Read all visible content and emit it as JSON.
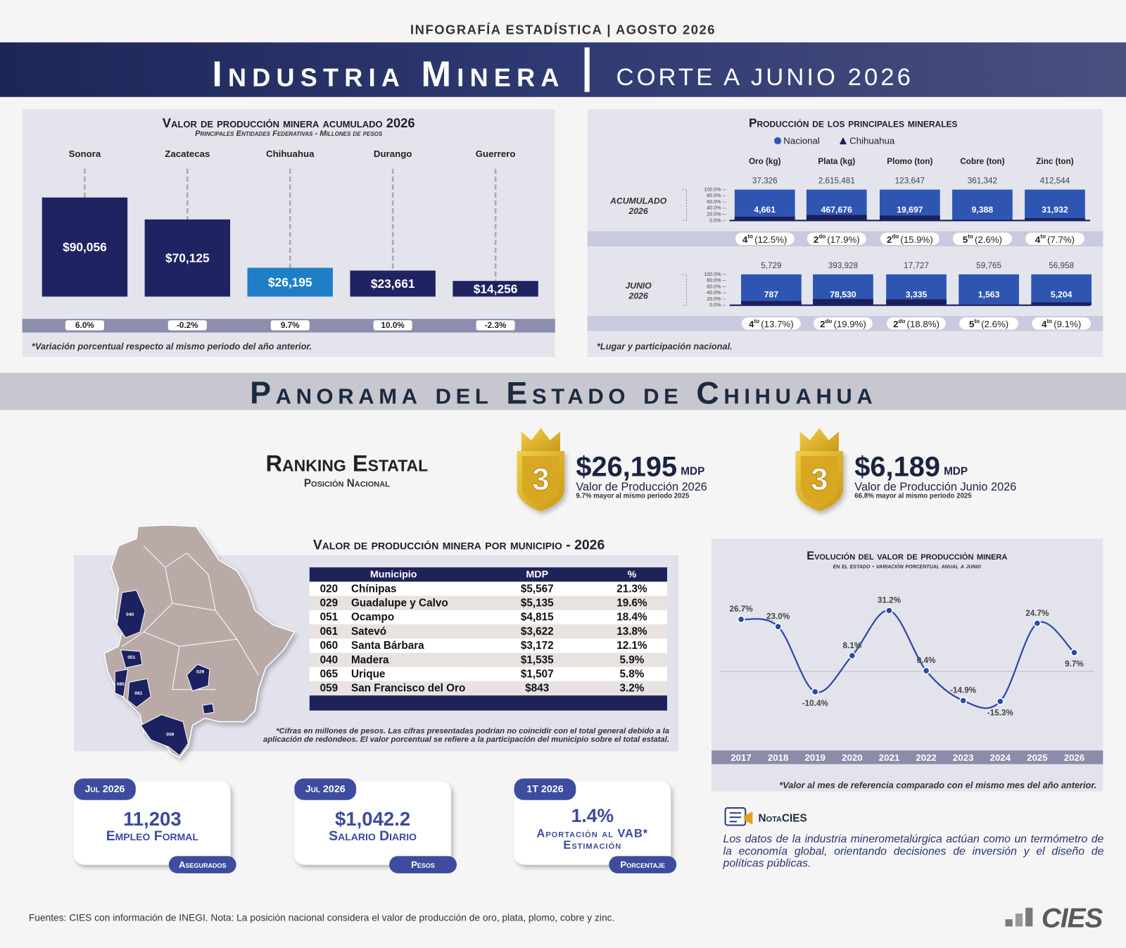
{
  "header": {
    "top_label": "INFOGRAFÍA ESTADÍSTICA | AGOSTO 2026",
    "title": "Industria Minera",
    "subtitle": "CORTE A JUNIO 2026"
  },
  "chart_data": [
    {
      "type": "bar",
      "title": "Valor de producción minera acumulado 2026",
      "subtitle": "Principales Entidades Federativas - Millones de pesos",
      "categories": [
        "Sonora",
        "Zacatecas",
        "Chihuahua",
        "Durango",
        "Guerrero"
      ],
      "values": [
        90056,
        70125,
        26195,
        23661,
        14256
      ],
      "value_labels": [
        "$90,056",
        "$70,125",
        "$26,195",
        "$23,661",
        "$14,256"
      ],
      "colors": [
        "#1f2361",
        "#1f2361",
        "#1f7fc6",
        "#1f2361",
        "#1f2361"
      ],
      "variation_labels": [
        "6.0%",
        "-0.2%",
        "9.7%",
        "10.0%",
        "-2.3%"
      ],
      "footnote": "*Variación porcentual respecto al mismo periodo del año anterior."
    },
    {
      "type": "share",
      "title": "Producción de los principales minerales",
      "categories": [
        "Oro (kg)",
        "Plata (kg)",
        "Plomo (ton)",
        "Cobre (ton)",
        "Zinc (ton)"
      ],
      "series": [
        {
          "name": "Nacional",
          "color": "#2f55b2"
        },
        {
          "name": "Chihuahua",
          "color": "#1b1f5c"
        }
      ],
      "ylim": [
        0,
        100
      ],
      "yticks": [
        {
          "value": 100,
          "label": "100.0%"
        },
        {
          "value": 80,
          "label": "80.0%"
        },
        {
          "value": 60,
          "label": "60.0%"
        },
        {
          "value": 40,
          "label": "40.0%"
        },
        {
          "value": 20,
          "label": "20.0%"
        },
        {
          "value": 0,
          "label": "0.0%"
        }
      ],
      "rows": [
        {
          "label": "ACUMULADO",
          "year": "2026",
          "nacional": [
            37326,
            2615481,
            123647,
            361342,
            412544
          ],
          "nacional_labels": [
            "37,326",
            "2,615,481",
            "123,647",
            "361,342",
            "412,544"
          ],
          "chihuahua": [
            4661,
            467676,
            19697,
            9388,
            31932
          ],
          "chihuahua_labels": [
            "4,661",
            "467,676",
            "19,697",
            "9,388",
            "31,932"
          ],
          "rank": [
            "4",
            "2",
            "2",
            "5",
            "4"
          ],
          "rank_suffix": [
            "to",
            "do",
            "do",
            "to",
            "to"
          ],
          "share": [
            "(12.5%)",
            "(17.9%)",
            "(15.9%)",
            "(2.6%)",
            "(7.7%)"
          ]
        },
        {
          "label": "JUNIO",
          "year": "2026",
          "nacional": [
            5729,
            393928,
            17727,
            59765,
            56958
          ],
          "nacional_labels": [
            "5,729",
            "393,928",
            "17,727",
            "59,765",
            "56,958"
          ],
          "chihuahua": [
            787,
            78530,
            3335,
            1563,
            5204
          ],
          "chihuahua_labels": [
            "787",
            "78,530",
            "3,335",
            "1,563",
            "5,204"
          ],
          "rank": [
            "4",
            "2",
            "2",
            "5",
            "4"
          ],
          "rank_suffix": [
            "to",
            "do",
            "do",
            "to",
            "to"
          ],
          "share": [
            "(13.7%)",
            "(19.9%)",
            "(18.8%)",
            "(2.6%)",
            "(9.1%)"
          ]
        }
      ],
      "footnote": "*Lugar y participación nacional."
    },
    {
      "type": "line",
      "title": "Evolución del valor de producción minera",
      "subtitle": "en el estado - variación porcentual anual a junio",
      "categories": [
        "2017",
        "2018",
        "2019",
        "2020",
        "2021",
        "2022",
        "2023",
        "2024",
        "2025",
        "2026"
      ],
      "values": [
        26.7,
        23.0,
        -10.4,
        8.1,
        31.2,
        0.4,
        -14.9,
        -15.3,
        24.7,
        9.7
      ],
      "value_labels": [
        "26.7%",
        "23.0%",
        "-10.4%",
        "8.1%",
        "31.2%",
        "0.4%",
        "-14.9%",
        "-15.3%",
        "24.7%",
        "9.7%"
      ],
      "color": "#2b4aa6",
      "footnote": "*Valor al mes de referencia comparado con el mismo mes del año anterior."
    }
  ],
  "section_title": "Panorama del Estado de Chihuahua",
  "ranking": {
    "title": "Ranking Estatal",
    "subtitle": "Posición Nacional",
    "badges": [
      {
        "rank": "3",
        "value": "$26,195",
        "unit": "MDP",
        "label": "Valor de Producción 2026",
        "note": "9.7% mayor al mismo periodo 2025"
      },
      {
        "rank": "3",
        "value": "$6,189",
        "unit": "MDP",
        "label": "Valor de Producción Junio 2026",
        "note": "66.8% mayor al mismo periodo 2025"
      }
    ]
  },
  "municipios": {
    "title": "Valor de producción minera por municipio - 2026",
    "columns": [
      "Municipio",
      "MDP",
      "%"
    ],
    "rows": [
      [
        "020",
        "Chínipas",
        "$5,567",
        "21.3%"
      ],
      [
        "029",
        "Guadalupe y Calvo",
        "$5,135",
        "19.6%"
      ],
      [
        "051",
        "Ocampo",
        "$4,815",
        "18.4%"
      ],
      [
        "061",
        "Satevó",
        "$3,622",
        "13.8%"
      ],
      [
        "060",
        "Santa Bárbara",
        "$3,172",
        "12.1%"
      ],
      [
        "040",
        "Madera",
        "$1,535",
        "5.9%"
      ],
      [
        "065",
        "Urique",
        "$1,507",
        "5.8%"
      ],
      [
        "059",
        "San Francisco del Oro",
        "$843",
        "3.2%"
      ]
    ],
    "map_labels": [
      "040",
      "051",
      "065",
      "061",
      "029",
      "059"
    ],
    "footnote": "*Cifras en millones de pesos. Las cifras presentadas podrían no coincidir con el total general debido a la aplicación de redondeos. El valor porcentual se refiere a la participación del municipio sobre el total estatal."
  },
  "kpis": [
    {
      "period": "Jul 2026",
      "value": "11,203",
      "label": "Empleo Formal",
      "unit": "Asegurados"
    },
    {
      "period": "Jul 2026",
      "value": "$1,042.2",
      "label": "Salario Diario",
      "unit": "Pesos"
    },
    {
      "period": "1T 2026",
      "value": "1.4%",
      "label": "Aportación al VAB*",
      "sublabel": "Estimación",
      "unit": "Porcentaje"
    }
  ],
  "nota": {
    "title_a": "Nota",
    "title_b": "CIES",
    "text": "Los datos de la industria minerometalúrgica actúan como un termómetro de la economía global, orientando decisiones de inversión y el diseño de políticas públicas."
  },
  "footer": {
    "source": "Fuentes: CIES con información de INEGI. Nota: La posición nacional considera el valor de producción de oro, plata, plomo, cobre y zinc.",
    "logo": "CIES"
  }
}
